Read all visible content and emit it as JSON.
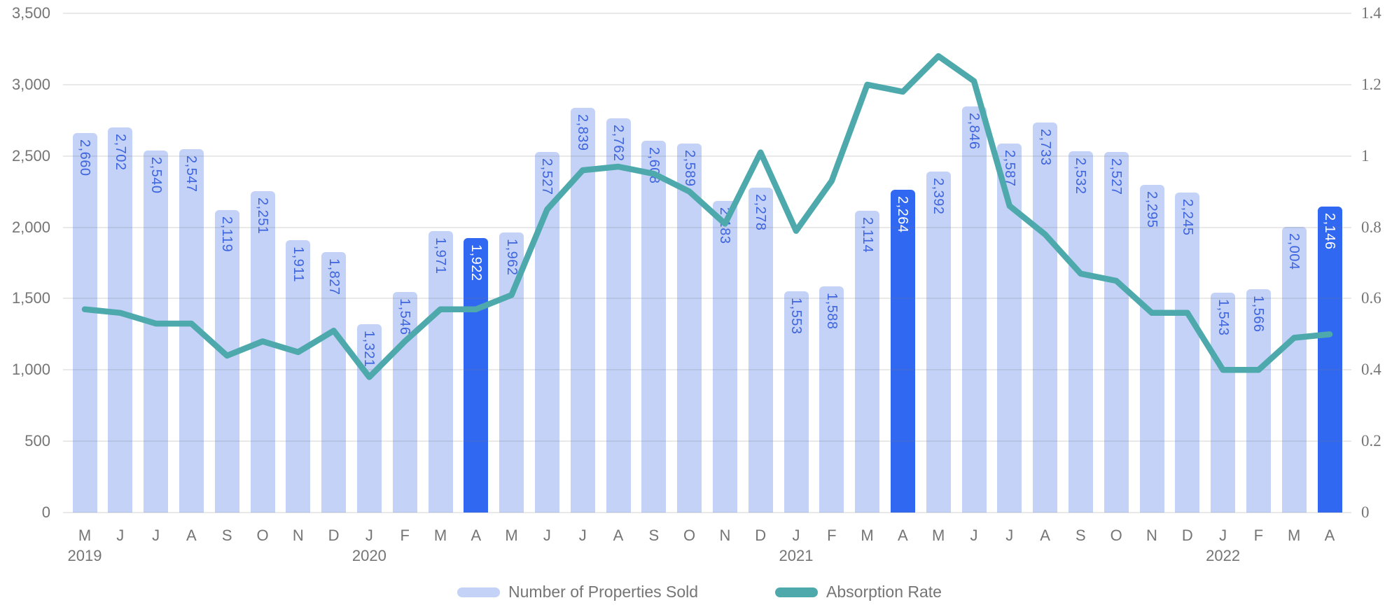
{
  "chart_data": {
    "type": "bar",
    "subtype": "combo-bar-line",
    "title": "",
    "categories": [
      "M",
      "J",
      "J",
      "A",
      "S",
      "O",
      "N",
      "D",
      "J",
      "F",
      "M",
      "A",
      "M",
      "J",
      "J",
      "A",
      "S",
      "O",
      "N",
      "D",
      "J",
      "F",
      "M",
      "A",
      "M",
      "J",
      "J",
      "A",
      "S",
      "O",
      "N",
      "D",
      "J",
      "F",
      "M",
      "A"
    ],
    "year_markers": [
      {
        "index": 0,
        "label": "2019"
      },
      {
        "index": 8,
        "label": "2020"
      },
      {
        "index": 20,
        "label": "2021"
      },
      {
        "index": 32,
        "label": "2022"
      }
    ],
    "series": [
      {
        "name": "Number of Properties Sold",
        "type": "bar",
        "axis": "left",
        "values": [
          2660,
          2702,
          2540,
          2547,
          2119,
          2251,
          1911,
          1827,
          1321,
          1546,
          1971,
          1922,
          1962,
          2527,
          2839,
          2762,
          2608,
          2589,
          2183,
          2278,
          1553,
          1588,
          2114,
          2264,
          2392,
          2846,
          2587,
          2733,
          2532,
          2527,
          2295,
          2245,
          1543,
          1566,
          2004,
          2146
        ],
        "highlighted_indices": [
          11,
          23,
          35
        ]
      },
      {
        "name": "Absorption Rate",
        "type": "line",
        "axis": "right",
        "values": [
          0.57,
          0.56,
          0.53,
          0.53,
          0.44,
          0.48,
          0.45,
          0.51,
          0.38,
          0.48,
          0.57,
          0.57,
          0.61,
          0.85,
          0.96,
          0.97,
          0.95,
          0.9,
          0.81,
          1.01,
          0.79,
          0.93,
          1.2,
          1.18,
          1.28,
          1.21,
          0.86,
          0.78,
          0.67,
          0.65,
          0.56,
          0.56,
          0.4,
          0.4,
          0.49,
          0.5
        ]
      }
    ],
    "left_axis": {
      "ticks": [
        "3,500",
        "3,000",
        "2,500",
        "2,000",
        "1,500",
        "1,000",
        "500",
        "0"
      ],
      "min": 0,
      "max": 3500
    },
    "right_axis": {
      "ticks": [
        "1.4",
        "1.2",
        "1",
        "0.8",
        "0.6",
        "0.4",
        "0.2",
        "0"
      ],
      "min": 0,
      "max": 1.4
    },
    "grid": true,
    "legend_position": "bottom"
  },
  "legend": {
    "items": [
      {
        "label": "Number of Properties Sold",
        "swatch_color": "#C4D2F8"
      },
      {
        "label": "Absorption Rate",
        "swatch_color": "#4DA9AB"
      }
    ]
  },
  "colors": {
    "bar_light": "#C4D2F8",
    "bar_highlight": "#3168F2",
    "line": "#4DA9AB",
    "bar_label_blue": "#3E65DE",
    "bar_label_white": "#FFFFFF",
    "axis_text": "#757575",
    "gridline": "#E8E8E8",
    "background": "#FFFFFF"
  }
}
